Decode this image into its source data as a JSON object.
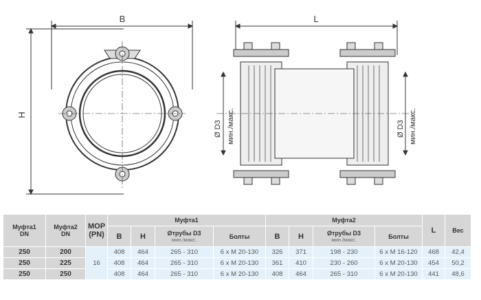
{
  "drawing": {
    "dim_b": "B",
    "dim_h": "H",
    "dim_l": "L",
    "d3_label": "Ø D3",
    "minmax_label": "мин./макс."
  },
  "table": {
    "headers": {
      "coupling1_dn": "Муфта1",
      "coupling2_dn": "Муфта2",
      "dn": "DN",
      "mop": "MOP",
      "pn": "(PN)",
      "coupling1": "Муфта1",
      "coupling2": "Муфта2",
      "b": "B",
      "h": "H",
      "d3": "Øтрубы D3",
      "d3_sub": "мин./макс.",
      "bolts": "Болты",
      "l": "L",
      "weight": "Вес"
    },
    "mop_value": "16",
    "rows": [
      {
        "dn1": "250",
        "dn2": "200",
        "b1": "408",
        "h1": "464",
        "d31": "265 - 310",
        "bolts1": "6 x M 20-130",
        "b2": "326",
        "h2": "371",
        "d32": "198 - 230",
        "bolts2": "6 x M 16-120",
        "l": "468",
        "weight": "42,4"
      },
      {
        "dn1": "250",
        "dn2": "225",
        "b1": "408",
        "h1": "464",
        "d31": "265 - 310",
        "bolts1": "6 x M 20-130",
        "b2": "361",
        "h2": "410",
        "d32": "230 - 260",
        "bolts2": "6 x M 20-130",
        "l": "454",
        "weight": "50,2"
      },
      {
        "dn1": "250",
        "dn2": "250",
        "b1": "408",
        "h1": "464",
        "d31": "265 - 310",
        "bolts1": "6 x M 20-130",
        "b2": "408",
        "h2": "464",
        "d32": "265 - 310",
        "bolts2": "6 x M 20-130",
        "l": "441",
        "weight": "48,6"
      }
    ]
  }
}
